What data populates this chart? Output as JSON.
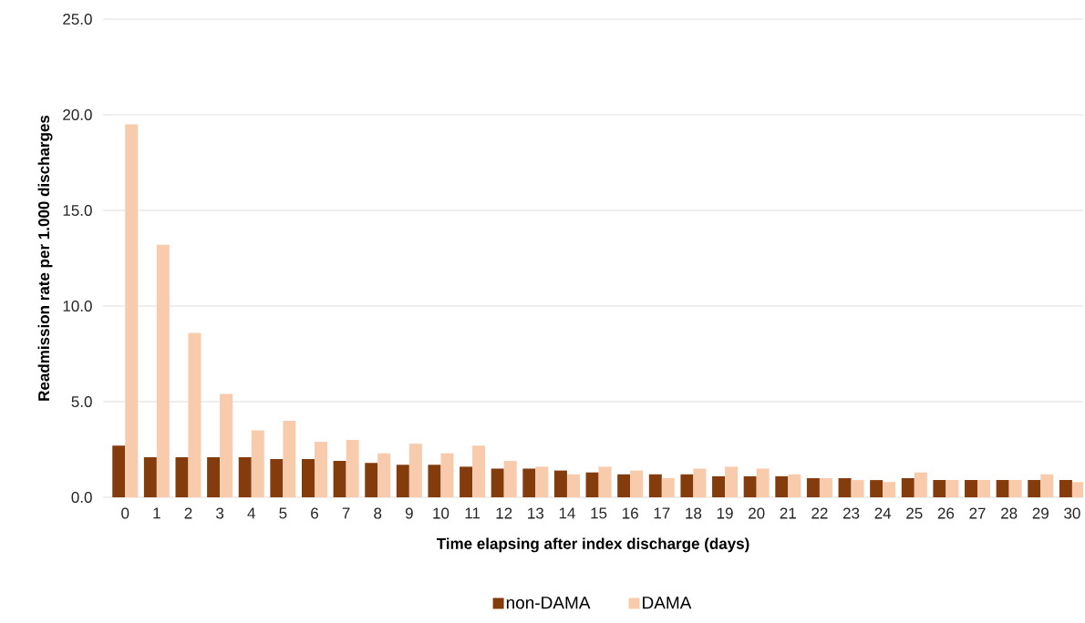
{
  "chart_data": {
    "type": "bar",
    "xlabel": "Time elapsing after index discharge (days)",
    "ylabel": "Readmission rate per 1.000 discharges",
    "categories": [
      "0",
      "1",
      "2",
      "3",
      "4",
      "5",
      "6",
      "7",
      "8",
      "9",
      "10",
      "11",
      "12",
      "13",
      "14",
      "15",
      "16",
      "17",
      "18",
      "19",
      "20",
      "21",
      "22",
      "23",
      "24",
      "25",
      "26",
      "27",
      "28",
      "29",
      "30"
    ],
    "series": [
      {
        "name": "non-DAMA",
        "color": "#843c0c",
        "values": [
          2.7,
          2.1,
          2.1,
          2.1,
          2.1,
          2.0,
          2.0,
          1.9,
          1.8,
          1.7,
          1.7,
          1.6,
          1.5,
          1.5,
          1.4,
          1.3,
          1.2,
          1.2,
          1.2,
          1.1,
          1.1,
          1.1,
          1.0,
          1.0,
          0.9,
          1.0,
          0.9,
          0.9,
          0.9,
          0.9,
          0.9
        ]
      },
      {
        "name": "DAMA",
        "color": "#f8cbad",
        "values": [
          19.5,
          13.2,
          8.6,
          5.4,
          3.5,
          4.0,
          2.9,
          3.0,
          2.3,
          2.8,
          2.3,
          2.7,
          1.9,
          1.6,
          1.2,
          1.6,
          1.4,
          1.0,
          1.5,
          1.6,
          1.5,
          1.2,
          1.0,
          0.9,
          0.8,
          1.3,
          0.9,
          0.9,
          0.9,
          1.2,
          0.8
        ]
      }
    ],
    "ylim": [
      0,
      25
    ],
    "yticks": [
      {
        "value": 0,
        "label": "0.0"
      },
      {
        "value": 5,
        "label": "5.0"
      },
      {
        "value": 10,
        "label": "10.0"
      },
      {
        "value": 15,
        "label": "15.0"
      },
      {
        "value": 20,
        "label": "20.0"
      },
      {
        "value": 25,
        "label": "25.0"
      }
    ],
    "grid": "y",
    "legend": "bottom"
  }
}
